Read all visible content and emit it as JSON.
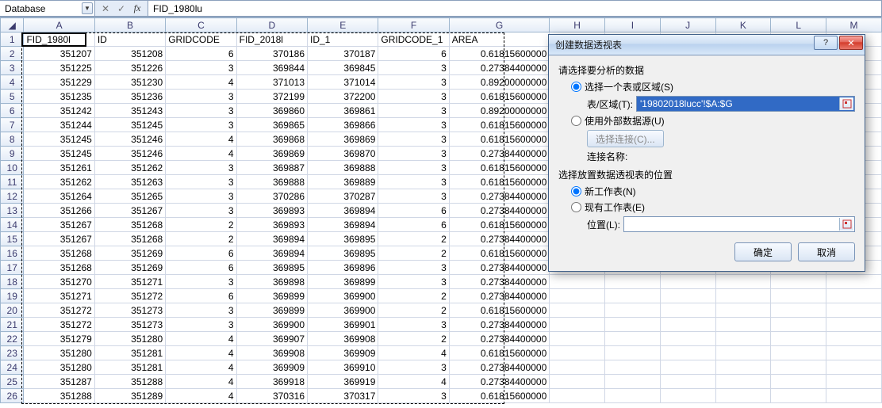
{
  "formula_bar": {
    "name_box": "Database",
    "formula": "FID_1980lu"
  },
  "columns": [
    "A",
    "B",
    "C",
    "D",
    "E",
    "F",
    "G",
    "H",
    "I",
    "J",
    "K",
    "L",
    "M"
  ],
  "headers": [
    "FID_1980l",
    "ID",
    "GRIDCODE",
    "FID_2018l",
    "ID_1",
    "GRIDCODE_1",
    "AREA"
  ],
  "rows": [
    [
      351207,
      351208,
      6,
      370186,
      370187,
      6,
      "0.61815600000"
    ],
    [
      351225,
      351226,
      3,
      369844,
      369845,
      3,
      "0.27384400000"
    ],
    [
      351229,
      351230,
      4,
      371013,
      371014,
      3,
      "0.89200000000"
    ],
    [
      351235,
      351236,
      3,
      372199,
      372200,
      3,
      "0.61815600000"
    ],
    [
      351242,
      351243,
      3,
      369860,
      369861,
      3,
      "0.89200000000"
    ],
    [
      351244,
      351245,
      3,
      369865,
      369866,
      3,
      "0.61815600000"
    ],
    [
      351245,
      351246,
      4,
      369868,
      369869,
      3,
      "0.61815600000"
    ],
    [
      351245,
      351246,
      4,
      369869,
      369870,
      3,
      "0.27384400000"
    ],
    [
      351261,
      351262,
      3,
      369887,
      369888,
      3,
      "0.61815600000"
    ],
    [
      351262,
      351263,
      3,
      369888,
      369889,
      3,
      "0.61815600000"
    ],
    [
      351264,
      351265,
      3,
      370286,
      370287,
      3,
      "0.27384400000"
    ],
    [
      351266,
      351267,
      3,
      369893,
      369894,
      6,
      "0.27384400000"
    ],
    [
      351267,
      351268,
      2,
      369893,
      369894,
      6,
      "0.61815600000"
    ],
    [
      351267,
      351268,
      2,
      369894,
      369895,
      2,
      "0.27384400000"
    ],
    [
      351268,
      351269,
      6,
      369894,
      369895,
      2,
      "0.61815600000"
    ],
    [
      351268,
      351269,
      6,
      369895,
      369896,
      3,
      "0.27384400000"
    ],
    [
      351270,
      351271,
      3,
      369898,
      369899,
      3,
      "0.27384400000"
    ],
    [
      351271,
      351272,
      6,
      369899,
      369900,
      2,
      "0.27384400000"
    ],
    [
      351272,
      351273,
      3,
      369899,
      369900,
      2,
      "0.61815600000"
    ],
    [
      351272,
      351273,
      3,
      369900,
      369901,
      3,
      "0.27384400000"
    ],
    [
      351279,
      351280,
      4,
      369907,
      369908,
      2,
      "0.27384400000"
    ],
    [
      351280,
      351281,
      4,
      369908,
      369909,
      4,
      "0.61815600000"
    ],
    [
      351280,
      351281,
      4,
      369909,
      369910,
      3,
      "0.27384400000"
    ],
    [
      351287,
      351288,
      4,
      369918,
      369919,
      4,
      "0.27384400000"
    ],
    [
      351288,
      351289,
      4,
      370316,
      370317,
      3,
      "0.61815600000"
    ]
  ],
  "dialog": {
    "title": "创建数据透视表",
    "sec1_label": "请选择要分析的数据",
    "opt_select_range": "选择一个表或区域(S)",
    "opt_select_range_sub_label": "表/区域(T):",
    "range_value": "'19802018lucc'!$A:$G",
    "opt_external": "使用外部数据源(U)",
    "btn_choose_conn": "选择连接(C)...",
    "conn_name_label": "连接名称:",
    "sec2_label": "选择放置数据透视表的位置",
    "opt_new_sheet": "新工作表(N)",
    "opt_existing": "现有工作表(E)",
    "loc_label": "位置(L):",
    "ok": "确定",
    "cancel": "取消"
  }
}
